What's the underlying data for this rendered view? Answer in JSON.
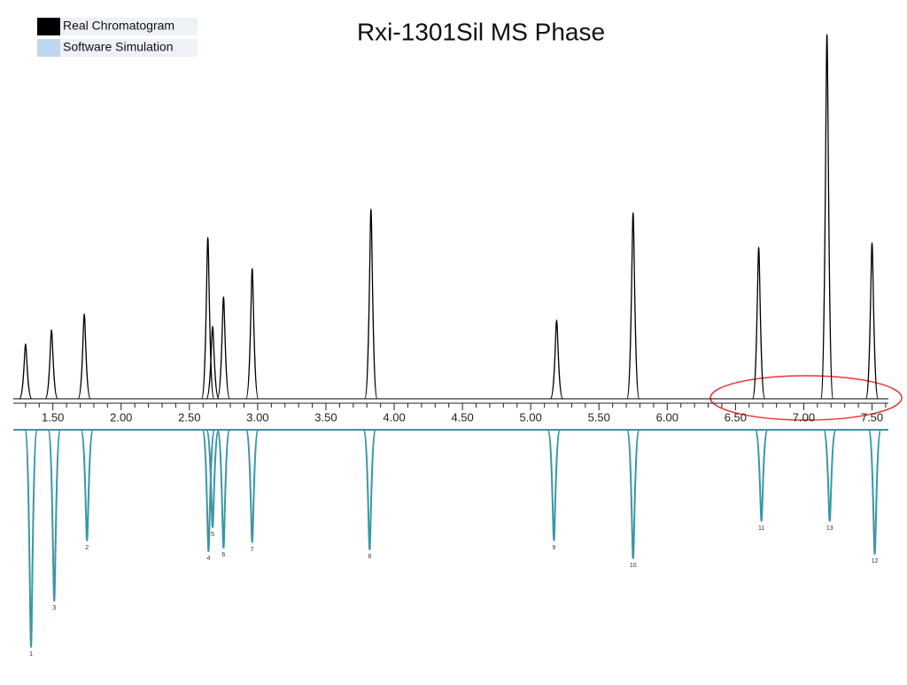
{
  "chart_data": {
    "type": "chromatogram",
    "title": "Rxi-1301Sil MS Phase",
    "xlim": [
      1.21,
      7.62
    ],
    "xticks": [
      {
        "value": 1.5,
        "label": "1.50"
      },
      {
        "value": 2.0,
        "label": "2.00"
      },
      {
        "value": 2.5,
        "label": "2.50"
      },
      {
        "value": 3.0,
        "label": "3.00"
      },
      {
        "value": 3.5,
        "label": "3.50"
      },
      {
        "value": 4.0,
        "label": "4.00"
      },
      {
        "value": 4.5,
        "label": "4.50"
      },
      {
        "value": 5.0,
        "label": "5.00"
      },
      {
        "value": 5.5,
        "label": "5.50"
      },
      {
        "value": 6.0,
        "label": "6.00"
      },
      {
        "value": 6.5,
        "label": "6.50"
      },
      {
        "value": 7.0,
        "label": "7.00"
      },
      {
        "value": 7.5,
        "label": "7.50"
      }
    ],
    "xminorticks": [
      1.3,
      1.4,
      1.6,
      1.7,
      1.8,
      1.9,
      2.1,
      2.2,
      2.3,
      2.4,
      2.6,
      2.7,
      2.8,
      2.9,
      3.1,
      3.2,
      3.3,
      3.4,
      3.6,
      3.7,
      3.8,
      3.9,
      4.1,
      4.2,
      4.3,
      4.4,
      4.6,
      4.7,
      4.8,
      4.9,
      5.1,
      5.2,
      5.3,
      5.4,
      5.6,
      5.7,
      5.8,
      5.9,
      6.1,
      6.2,
      6.3,
      6.4,
      6.6,
      6.7,
      6.8,
      6.9,
      7.1,
      7.2,
      7.3,
      7.4,
      7.6
    ],
    "ylim": [
      0,
      420
    ],
    "y2lim": [
      0,
      250
    ],
    "series": [
      {
        "name": "Real Chromatogram",
        "color": "#000000",
        "legend_color": "#000000",
        "x": [
          1.3,
          1.49,
          1.73,
          2.635,
          2.67,
          2.75,
          2.96,
          3.83,
          5.19,
          5.75,
          6.67,
          7.17,
          7.5
        ],
        "values": [
          62,
          78,
          96,
          182,
          82,
          115,
          147,
          214,
          89,
          210,
          171,
          411,
          176
        ]
      },
      {
        "name": "Software Simulation",
        "color": "#3a97a6",
        "legend_color": "#bdd7ee",
        "axis": "y2",
        "x": [
          1.34,
          1.51,
          1.75,
          2.64,
          2.67,
          2.75,
          2.96,
          3.82,
          5.17,
          5.75,
          6.69,
          7.19,
          7.52
        ],
        "values": [
          245,
          193,
          125,
          137,
          110,
          133,
          127,
          135,
          125,
          145,
          103,
          103,
          140
        ],
        "peak_labels": [
          "1",
          "3",
          "2",
          "4",
          "5",
          "6",
          "7",
          "8",
          "9",
          "10",
          "11",
          "13",
          "12"
        ]
      }
    ]
  }
}
